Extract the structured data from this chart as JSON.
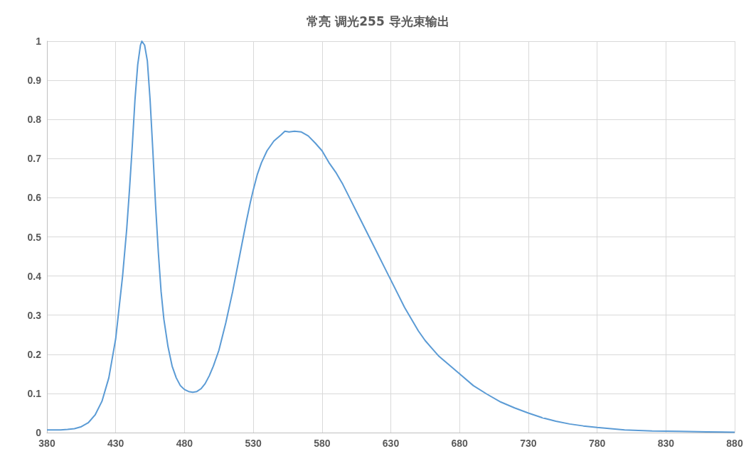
{
  "chart_data": {
    "type": "line",
    "title": "常亮 调光255 导光束输出",
    "x": [
      380,
      390,
      395,
      400,
      405,
      410,
      415,
      420,
      425,
      430,
      435,
      438,
      440,
      442,
      444,
      446,
      448,
      449,
      451,
      453,
      455,
      457,
      459,
      461,
      463,
      465,
      468,
      471,
      474,
      477,
      480,
      483,
      486,
      489,
      492,
      495,
      498,
      501,
      505,
      510,
      515,
      520,
      525,
      528,
      530,
      533,
      536,
      540,
      545,
      550,
      553,
      556,
      560,
      565,
      570,
      575,
      580,
      585,
      590,
      595,
      600,
      605,
      610,
      615,
      620,
      625,
      630,
      635,
      640,
      645,
      650,
      655,
      660,
      665,
      670,
      675,
      680,
      690,
      700,
      710,
      720,
      730,
      740,
      750,
      760,
      770,
      780,
      790,
      800,
      820,
      840,
      860,
      880
    ],
    "series": [
      {
        "color": "#5b9bd5",
        "values": [
          0.007,
          0.007,
          0.008,
          0.01,
          0.015,
          0.025,
          0.045,
          0.08,
          0.14,
          0.24,
          0.4,
          0.52,
          0.62,
          0.73,
          0.85,
          0.94,
          0.99,
          1.0,
          0.99,
          0.95,
          0.85,
          0.72,
          0.58,
          0.46,
          0.36,
          0.29,
          0.22,
          0.17,
          0.14,
          0.12,
          0.11,
          0.105,
          0.103,
          0.105,
          0.112,
          0.125,
          0.145,
          0.17,
          0.21,
          0.28,
          0.36,
          0.45,
          0.54,
          0.59,
          0.62,
          0.66,
          0.69,
          0.72,
          0.745,
          0.76,
          0.77,
          0.768,
          0.77,
          0.768,
          0.758,
          0.74,
          0.72,
          0.69,
          0.665,
          0.635,
          0.6,
          0.565,
          0.53,
          0.495,
          0.46,
          0.425,
          0.39,
          0.355,
          0.32,
          0.29,
          0.26,
          0.235,
          0.215,
          0.195,
          0.18,
          0.165,
          0.15,
          0.12,
          0.098,
          0.078,
          0.063,
          0.05,
          0.038,
          0.029,
          0.022,
          0.017,
          0.013,
          0.01,
          0.007,
          0.004,
          0.003,
          0.002,
          0.001
        ]
      }
    ],
    "xlim": [
      380,
      880
    ],
    "xticks": [
      380,
      430,
      480,
      530,
      580,
      630,
      680,
      730,
      780,
      830,
      880
    ],
    "ylim": [
      0,
      1
    ],
    "yticks": [
      0,
      0.1,
      0.2,
      0.3,
      0.4,
      0.5,
      0.6,
      0.7,
      0.8,
      0.9,
      1
    ],
    "grid": true,
    "marker": "none",
    "line_style": "solid"
  }
}
